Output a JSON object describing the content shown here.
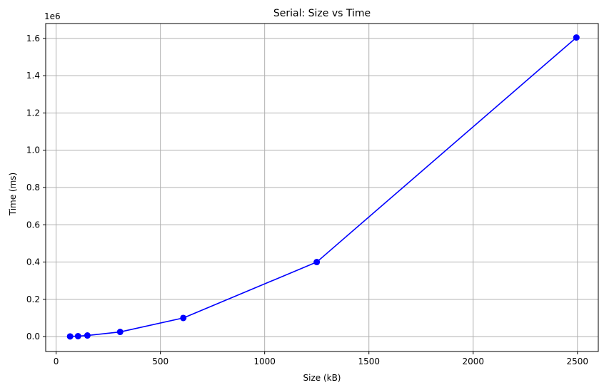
{
  "chart_data": {
    "type": "line",
    "title": "Serial: Size vs Time",
    "xlabel": "Size (kB)",
    "ylabel": "Time (ms)",
    "y_offset_label": "1e6",
    "xlim": [
      -50,
      2600
    ],
    "ylim": [
      -0.08,
      1.68
    ],
    "y_scale_factor": 1000000,
    "xticks": [
      0,
      500,
      1000,
      1500,
      2000,
      2500
    ],
    "xtick_labels": [
      "0",
      "500",
      "1000",
      "1500",
      "2000",
      "2500"
    ],
    "yticks": [
      0.0,
      0.2,
      0.4,
      0.6,
      0.8,
      1.0,
      1.2,
      1.4,
      1.6
    ],
    "ytick_labels": [
      "0.0",
      "0.2",
      "0.4",
      "0.6",
      "0.8",
      "1.0",
      "1.2",
      "1.4",
      "1.6"
    ],
    "grid": true,
    "series": [
      {
        "color": "#0000ff",
        "marker": "circle",
        "x": [
          67,
          105,
          150,
          307,
          610,
          1250,
          2495
        ],
        "y": [
          1000,
          2500,
          6000,
          25000,
          100000,
          400000,
          1605000
        ]
      }
    ]
  }
}
